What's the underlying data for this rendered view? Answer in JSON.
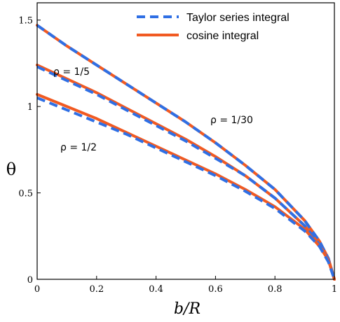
{
  "chart_data": {
    "type": "line",
    "xlabel": "b/R",
    "ylabel": "θ",
    "xlim": [
      0,
      1
    ],
    "ylim": [
      0,
      1.6
    ],
    "x_ticks": [
      "0",
      "0.2",
      "0.4",
      "0.6",
      "0.8",
      "1"
    ],
    "y_ticks": [
      "0",
      "0.5",
      "1",
      "1.5"
    ],
    "grid": false,
    "legend_position": "top-right",
    "legend": [
      {
        "label": "Taylor series integral",
        "color": "#2f6fe4",
        "style": "dashed"
      },
      {
        "label": "cosine integral",
        "color": "#f15a22",
        "style": "solid"
      }
    ],
    "curves": [
      {
        "annotation": "ρ = 1/30",
        "x": [
          0,
          0.1,
          0.2,
          0.3,
          0.4,
          0.5,
          0.6,
          0.7,
          0.8,
          0.9,
          0.95,
          0.98,
          1.0
        ],
        "cosine_integral": [
          1.47,
          1.35,
          1.24,
          1.13,
          1.02,
          0.91,
          0.79,
          0.66,
          0.52,
          0.34,
          0.22,
          0.12,
          0.0
        ],
        "taylor_series_integral": [
          1.47,
          1.35,
          1.24,
          1.13,
          1.02,
          0.91,
          0.79,
          0.66,
          0.52,
          0.34,
          0.22,
          0.12,
          0.0
        ]
      },
      {
        "annotation": "ρ = 1/5",
        "x": [
          0,
          0.1,
          0.2,
          0.3,
          0.4,
          0.5,
          0.6,
          0.7,
          0.8,
          0.9,
          0.95,
          0.98,
          1.0
        ],
        "cosine_integral": [
          1.24,
          1.16,
          1.08,
          0.99,
          0.9,
          0.81,
          0.71,
          0.6,
          0.47,
          0.31,
          0.2,
          0.11,
          0.0
        ],
        "taylor_series_integral": [
          1.23,
          1.15,
          1.07,
          0.98,
          0.89,
          0.8,
          0.7,
          0.6,
          0.47,
          0.31,
          0.2,
          0.11,
          0.0
        ]
      },
      {
        "annotation": "ρ = 1/2",
        "x": [
          0,
          0.1,
          0.2,
          0.3,
          0.4,
          0.5,
          0.6,
          0.7,
          0.8,
          0.9,
          0.95,
          0.98,
          1.0
        ],
        "cosine_integral": [
          1.07,
          1.0,
          0.93,
          0.85,
          0.77,
          0.69,
          0.61,
          0.52,
          0.42,
          0.29,
          0.19,
          0.11,
          0.0
        ],
        "taylor_series_integral": [
          1.05,
          0.98,
          0.91,
          0.84,
          0.76,
          0.68,
          0.6,
          0.51,
          0.41,
          0.28,
          0.19,
          0.1,
          0.0
        ]
      }
    ]
  }
}
